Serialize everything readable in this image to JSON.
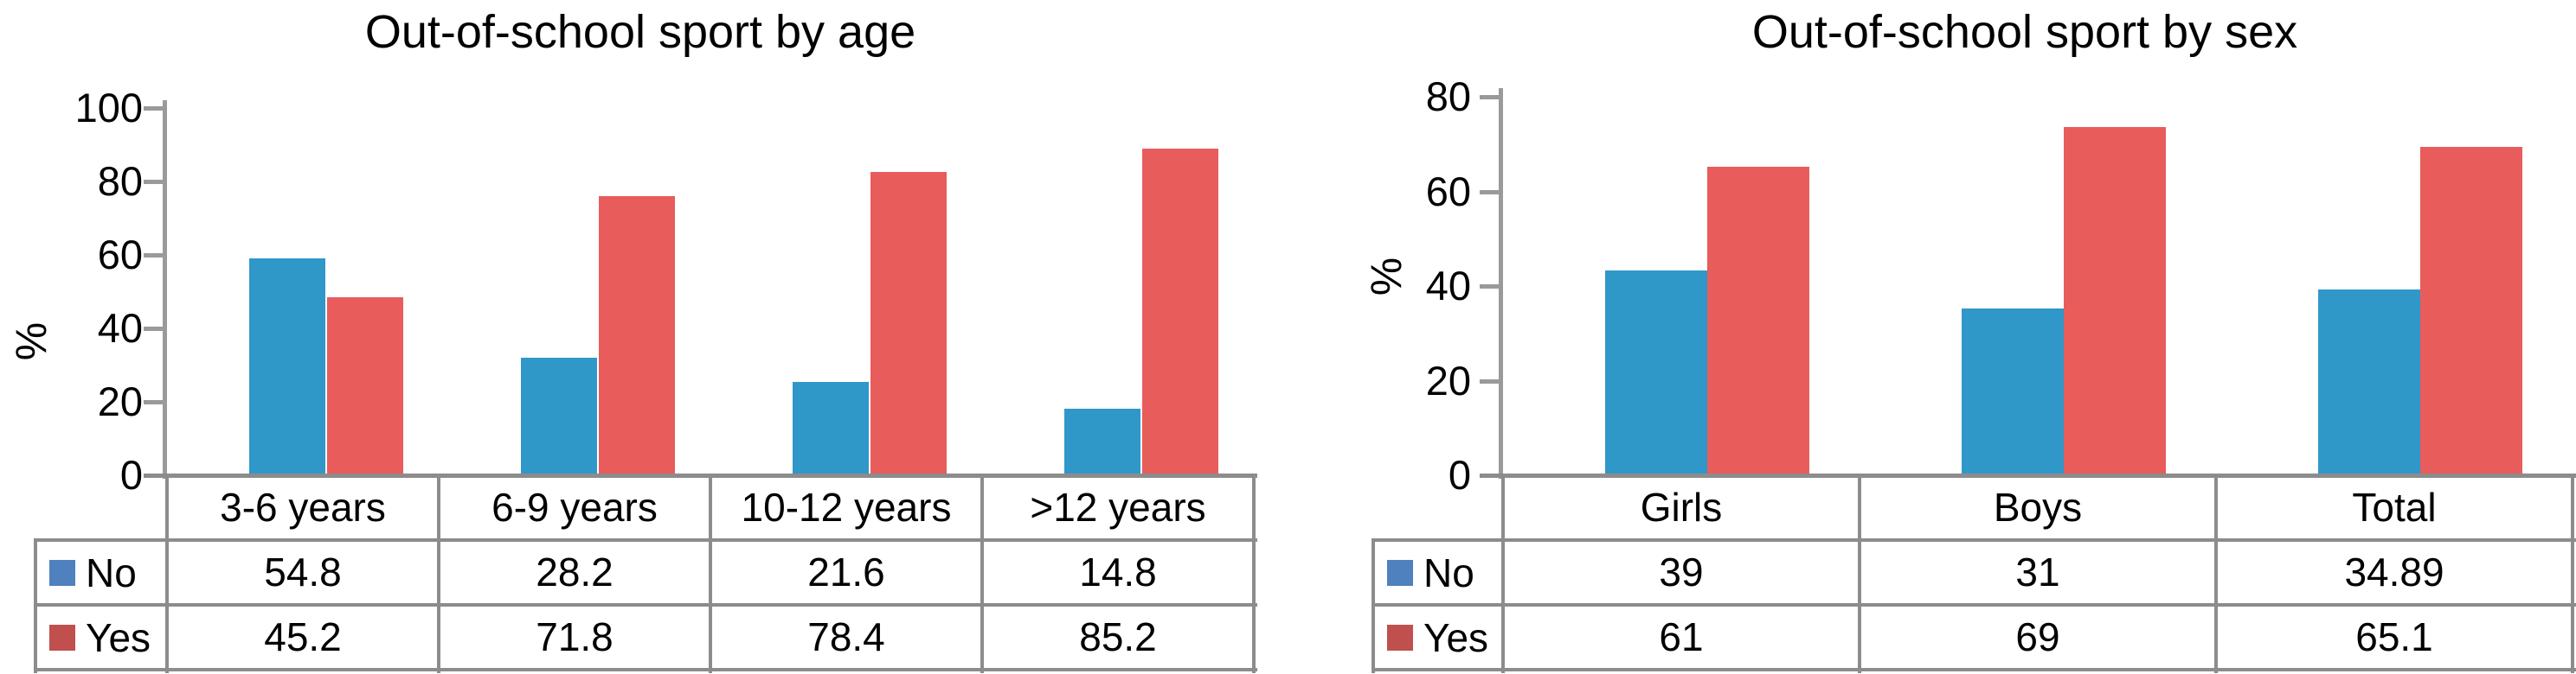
{
  "chart_data": [
    {
      "type": "bar",
      "title": "Out-of-school sport by age",
      "ylabel": "%",
      "xlabel": "",
      "y_ticks": [
        0,
        20,
        40,
        60,
        80,
        100
      ],
      "ylim": [
        0,
        100
      ],
      "grid": false,
      "legend_position": "table-left",
      "data_table_shown": true,
      "categories": [
        "3-6 years",
        "6-9 years",
        "10-12 years",
        ">12 years"
      ],
      "series": [
        {
          "name": "No",
          "values": [
            54.8,
            28.2,
            21.6,
            14.8
          ],
          "bar_values_as_drawn": [
            59,
            32,
            25.5,
            18
          ],
          "bar_color": "#3097C9",
          "legend_color": "#4E81BD"
        },
        {
          "name": "Yes",
          "values": [
            45.2,
            71.8,
            78.4,
            85.2
          ],
          "bar_values_as_drawn": [
            48.5,
            76,
            82.5,
            89
          ],
          "bar_color": "#E95C5C",
          "legend_color": "#C0504D"
        }
      ]
    },
    {
      "type": "bar",
      "title": "Out-of-school sport by sex",
      "ylabel": "%",
      "xlabel": "",
      "y_ticks": [
        0,
        20,
        40,
        60,
        80
      ],
      "ylim": [
        0,
        80
      ],
      "grid": false,
      "legend_position": "table-left",
      "data_table_shown": true,
      "categories": [
        "Girls",
        "Boys",
        "Total"
      ],
      "series": [
        {
          "name": "No",
          "values": [
            39,
            31,
            34.89
          ],
          "bar_values_as_drawn": [
            43.3,
            35.3,
            39.3
          ],
          "bar_color": "#3097C9",
          "legend_color": "#4E81BD"
        },
        {
          "name": "Yes",
          "values": [
            61,
            69,
            65.1
          ],
          "bar_values_as_drawn": [
            65.2,
            73.6,
            69.4
          ],
          "bar_color": "#E95C5C",
          "legend_color": "#C0504D"
        }
      ]
    }
  ],
  "colors": {
    "bar_blue": "#3097C9",
    "bar_red": "#E95C5C",
    "legend_blue": "#4E81BD",
    "legend_red": "#C0504D",
    "axis_gray": "#9A9A9A",
    "table_border_gray": "#8C8C8C",
    "text": "#000000",
    "background": "#FFFFFF"
  }
}
